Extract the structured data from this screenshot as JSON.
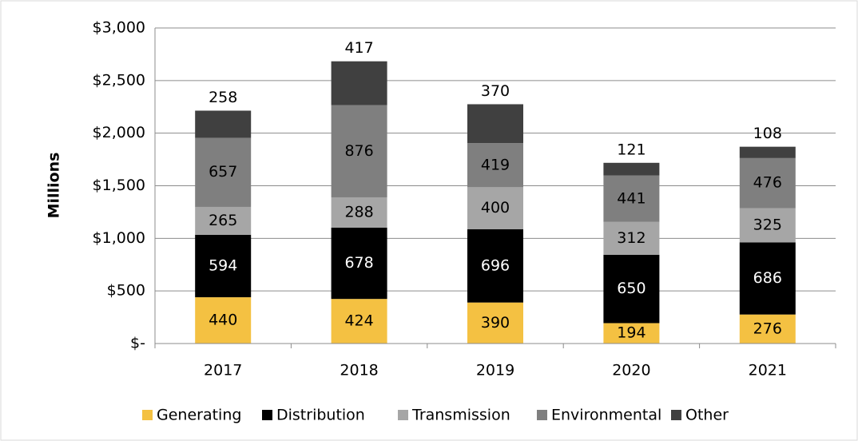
{
  "chart_data": {
    "type": "stacked_bar",
    "y_label": "Millions",
    "categories": [
      "2017",
      "2018",
      "2019",
      "2020",
      "2021"
    ],
    "series": [
      {
        "name": "Generating",
        "color": "#f4c142",
        "label_color": "#000000",
        "label_position": "inside",
        "values": [
          440,
          424,
          390,
          194,
          276
        ]
      },
      {
        "name": "Distribution",
        "color": "#000000",
        "label_color": "#ffffff",
        "label_position": "inside",
        "values": [
          594,
          678,
          696,
          650,
          686
        ]
      },
      {
        "name": "Transmission",
        "color": "#a6a6a6",
        "label_color": "#000000",
        "label_position": "inside",
        "values": [
          265,
          288,
          400,
          312,
          325
        ]
      },
      {
        "name": "Environmental",
        "color": "#7f7f7f",
        "label_color": "#000000",
        "label_position": "inside",
        "values": [
          657,
          876,
          419,
          441,
          476
        ]
      },
      {
        "name": "Other",
        "color": "#404040",
        "label_color": "#000000",
        "label_position": "above",
        "values": [
          258,
          417,
          370,
          121,
          108
        ]
      }
    ],
    "ylim": [
      0,
      3000
    ],
    "yticks": [
      {
        "value": 0,
        "label": "$-"
      },
      {
        "value": 500,
        "label": "$500"
      },
      {
        "value": 1000,
        "label": "$1,000"
      },
      {
        "value": 1500,
        "label": "$1,500"
      },
      {
        "value": 2000,
        "label": "$2,000"
      },
      {
        "value": 2500,
        "label": "$2,500"
      },
      {
        "value": 3000,
        "label": "$3,000"
      }
    ],
    "grid": true,
    "legend": "bottom"
  }
}
